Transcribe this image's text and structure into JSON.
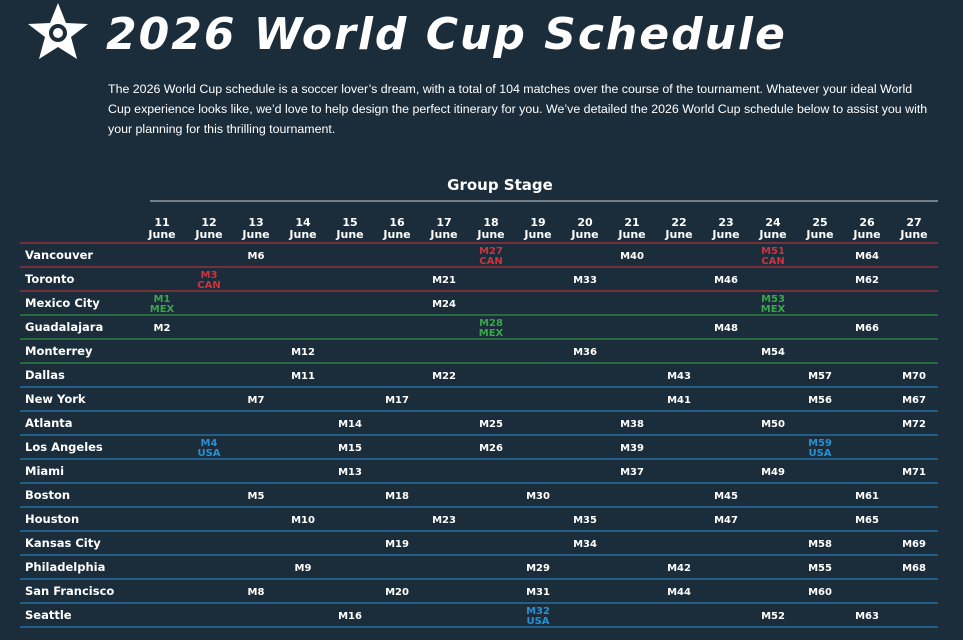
{
  "header": {
    "title": "2026 World Cup Schedule",
    "intro": "The 2026 World Cup schedule is a soccer lover’s dream, with a total of 104 matches over the course of the tournament. Whatever your ideal World Cup experience looks like, we’d love to help design the perfect itinerary for you. We’ve detailed the 2026 World Cup schedule below to assist you with your planning for this thrilling tournament."
  },
  "table": {
    "title": "Group Stage",
    "dates": [
      {
        "day": "11",
        "month": "June"
      },
      {
        "day": "12",
        "month": "June"
      },
      {
        "day": "13",
        "month": "June"
      },
      {
        "day": "14",
        "month": "June"
      },
      {
        "day": "15",
        "month": "June"
      },
      {
        "day": "16",
        "month": "June"
      },
      {
        "day": "17",
        "month": "June"
      },
      {
        "day": "18",
        "month": "June"
      },
      {
        "day": "19",
        "month": "June"
      },
      {
        "day": "20",
        "month": "June"
      },
      {
        "day": "21",
        "month": "June"
      },
      {
        "day": "22",
        "month": "June"
      },
      {
        "day": "23",
        "month": "June"
      },
      {
        "day": "24",
        "month": "June"
      },
      {
        "day": "25",
        "month": "June"
      },
      {
        "day": "26",
        "month": "June"
      },
      {
        "day": "27",
        "month": "June"
      }
    ],
    "rows": [
      {
        "city": "Vancouver",
        "color": "#d0323c",
        "cells": [
          null,
          null,
          {
            "match": "M6"
          },
          null,
          null,
          null,
          null,
          {
            "match": "M27",
            "host": "CAN"
          },
          null,
          null,
          {
            "match": "M40"
          },
          null,
          null,
          {
            "match": "M51",
            "host": "CAN"
          },
          null,
          {
            "match": "M64"
          },
          null
        ]
      },
      {
        "city": "Toronto",
        "color": "#d0323c",
        "cells": [
          null,
          {
            "match": "M3",
            "host": "CAN"
          },
          null,
          null,
          null,
          null,
          {
            "match": "M21"
          },
          null,
          null,
          {
            "match": "M33"
          },
          null,
          null,
          {
            "match": "M46"
          },
          null,
          null,
          {
            "match": "M62"
          },
          null
        ]
      },
      {
        "city": "Mexico City",
        "color": "#3aa64a",
        "cells": [
          {
            "match": "M1",
            "host": "MEX"
          },
          null,
          null,
          null,
          null,
          null,
          {
            "match": "M24"
          },
          null,
          null,
          null,
          null,
          null,
          null,
          {
            "match": "M53",
            "host": "MEX"
          },
          null,
          null,
          null
        ]
      },
      {
        "city": "Guadalajara",
        "color": "#3aa64a",
        "cells": [
          {
            "match": "M2"
          },
          null,
          null,
          null,
          null,
          null,
          null,
          {
            "match": "M28",
            "host": "MEX"
          },
          null,
          null,
          null,
          null,
          {
            "match": "M48"
          },
          null,
          null,
          {
            "match": "M66"
          },
          null
        ]
      },
      {
        "city": "Monterrey",
        "color": "#3aa64a",
        "cells": [
          null,
          null,
          null,
          {
            "match": "M12"
          },
          null,
          null,
          null,
          null,
          null,
          {
            "match": "M36"
          },
          null,
          null,
          null,
          {
            "match": "M54"
          },
          null,
          null,
          null
        ]
      },
      {
        "city": "Dallas",
        "color": "#2a8fd0",
        "cells": [
          null,
          null,
          null,
          {
            "match": "M11"
          },
          null,
          null,
          {
            "match": "M22"
          },
          null,
          null,
          null,
          null,
          {
            "match": "M43"
          },
          null,
          null,
          {
            "match": "M57"
          },
          null,
          {
            "match": "M70"
          }
        ]
      },
      {
        "city": "New York",
        "color": "#2a8fd0",
        "cells": [
          null,
          null,
          {
            "match": "M7"
          },
          null,
          null,
          {
            "match": "M17"
          },
          null,
          null,
          null,
          null,
          null,
          {
            "match": "M41"
          },
          null,
          null,
          {
            "match": "M56"
          },
          null,
          {
            "match": "M67"
          }
        ]
      },
      {
        "city": "Atlanta",
        "color": "#2a8fd0",
        "cells": [
          null,
          null,
          null,
          null,
          {
            "match": "M14"
          },
          null,
          null,
          {
            "match": "M25"
          },
          null,
          null,
          {
            "match": "M38"
          },
          null,
          null,
          {
            "match": "M50"
          },
          null,
          null,
          {
            "match": "M72"
          }
        ]
      },
      {
        "city": "Los Angeles",
        "color": "#2a8fd0",
        "cells": [
          null,
          {
            "match": "M4",
            "host": "USA"
          },
          null,
          null,
          {
            "match": "M15"
          },
          null,
          null,
          {
            "match": "M26"
          },
          null,
          null,
          {
            "match": "M39"
          },
          null,
          null,
          null,
          {
            "match": "M59",
            "host": "USA"
          },
          null,
          null
        ]
      },
      {
        "city": "Miami",
        "color": "#2a8fd0",
        "cells": [
          null,
          null,
          null,
          null,
          {
            "match": "M13"
          },
          null,
          null,
          null,
          null,
          null,
          {
            "match": "M37"
          },
          null,
          null,
          {
            "match": "M49"
          },
          null,
          null,
          {
            "match": "M71"
          }
        ]
      },
      {
        "city": "Boston",
        "color": "#2a8fd0",
        "cells": [
          null,
          null,
          {
            "match": "M5"
          },
          null,
          null,
          {
            "match": "M18"
          },
          null,
          null,
          {
            "match": "M30"
          },
          null,
          null,
          null,
          {
            "match": "M45"
          },
          null,
          null,
          {
            "match": "M61"
          },
          null
        ]
      },
      {
        "city": "Houston",
        "color": "#2a8fd0",
        "cells": [
          null,
          null,
          null,
          {
            "match": "M10"
          },
          null,
          null,
          {
            "match": "M23"
          },
          null,
          null,
          {
            "match": "M35"
          },
          null,
          null,
          {
            "match": "M47"
          },
          null,
          null,
          {
            "match": "M65"
          },
          null
        ]
      },
      {
        "city": "Kansas City",
        "color": "#2a8fd0",
        "cells": [
          null,
          null,
          null,
          null,
          null,
          {
            "match": "M19"
          },
          null,
          null,
          null,
          {
            "match": "M34"
          },
          null,
          null,
          null,
          null,
          {
            "match": "M58"
          },
          null,
          {
            "match": "M69"
          }
        ]
      },
      {
        "city": "Philadelphia",
        "color": "#2a8fd0",
        "cells": [
          null,
          null,
          null,
          {
            "match": "M9"
          },
          null,
          null,
          null,
          null,
          {
            "match": "M29"
          },
          null,
          null,
          {
            "match": "M42"
          },
          null,
          null,
          {
            "match": "M55"
          },
          null,
          {
            "match": "M68"
          }
        ]
      },
      {
        "city": "San Francisco",
        "color": "#2a8fd0",
        "cells": [
          null,
          null,
          {
            "match": "M8"
          },
          null,
          null,
          {
            "match": "M20"
          },
          null,
          null,
          {
            "match": "M31"
          },
          null,
          null,
          {
            "match": "M44"
          },
          null,
          null,
          {
            "match": "M60"
          },
          null,
          null
        ]
      },
      {
        "city": "Seattle",
        "color": "#2a8fd0",
        "cells": [
          null,
          null,
          null,
          null,
          {
            "match": "M16"
          },
          null,
          null,
          null,
          {
            "match": "M32",
            "host": "USA"
          },
          null,
          null,
          null,
          null,
          {
            "match": "M52"
          },
          null,
          {
            "match": "M63"
          },
          null
        ]
      }
    ]
  }
}
